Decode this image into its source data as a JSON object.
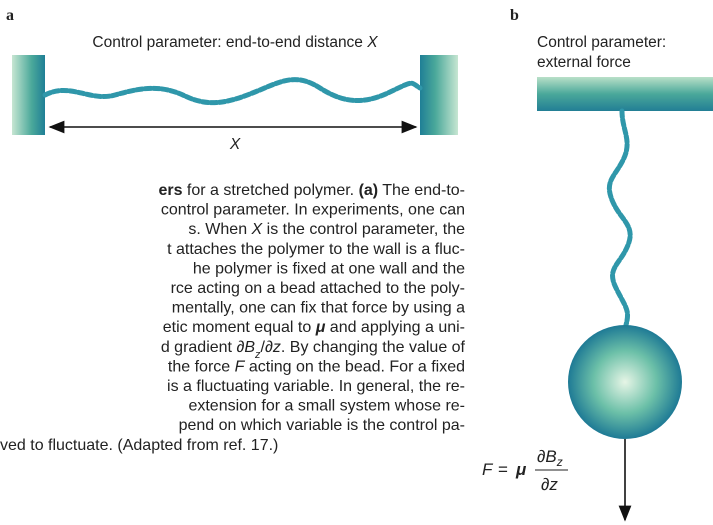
{
  "panel_a": {
    "label": "a",
    "title": [
      {
        "text": "Control parameter: end-to-end distance "
      },
      {
        "text": "X",
        "style": "italic"
      }
    ],
    "distance_label": "X"
  },
  "panel_b": {
    "label": "b",
    "title_lines": [
      "Control parameter:",
      "external force"
    ],
    "equation": {
      "lhs": "F",
      "equals": "=",
      "coef": "μ",
      "numerator": "∂B",
      "numerator_sub": "z",
      "denominator": "∂z"
    }
  },
  "caption": {
    "lines": [
      [
        {
          "text": "ers",
          "style": "bold"
        },
        {
          "text": " for a stretched polymer. "
        },
        {
          "text": "(a)",
          "style": "bold"
        },
        {
          "text": " The end-to-"
        }
      ],
      [
        {
          "text": "control parameter. In experiments, one can"
        }
      ],
      [
        {
          "text": "s. When "
        },
        {
          "text": "X",
          "style": "italic"
        },
        {
          "text": " is the control parameter, the"
        }
      ],
      [
        {
          "text": "t attaches the polymer to the wall is a fluc-"
        }
      ],
      [
        {
          "text": "he polymer is fixed at one wall and the"
        }
      ],
      [
        {
          "text": "rce acting on a bead attached to the poly-"
        }
      ],
      [
        {
          "text": "mentally, one can fix that force by using a"
        }
      ],
      [
        {
          "text": "etic moment equal to "
        },
        {
          "text": "μ",
          "style": "bold-italic"
        },
        {
          "text": " and applying a uni-"
        }
      ],
      [
        {
          "text": "d gradient ∂"
        },
        {
          "text": "B",
          "style": "italic"
        },
        {
          "text": "z",
          "style": "italic-sub"
        },
        {
          "text": "/∂"
        },
        {
          "text": "z",
          "style": "italic"
        },
        {
          "text": ". By changing the value of"
        }
      ],
      [
        {
          "text": "the force "
        },
        {
          "text": "F",
          "style": "italic"
        },
        {
          "text": " acting on the bead. For a fixed"
        }
      ],
      [
        {
          "text": "is a fluctuating variable. In general, the re-"
        }
      ],
      [
        {
          "text": "extension for a small system whose re-"
        }
      ],
      [
        {
          "text": "pend on which variable is the control pa-"
        }
      ],
      [
        {
          "text": "ved to fluctuate. (Adapted from ref. 17.)"
        }
      ]
    ]
  }
}
